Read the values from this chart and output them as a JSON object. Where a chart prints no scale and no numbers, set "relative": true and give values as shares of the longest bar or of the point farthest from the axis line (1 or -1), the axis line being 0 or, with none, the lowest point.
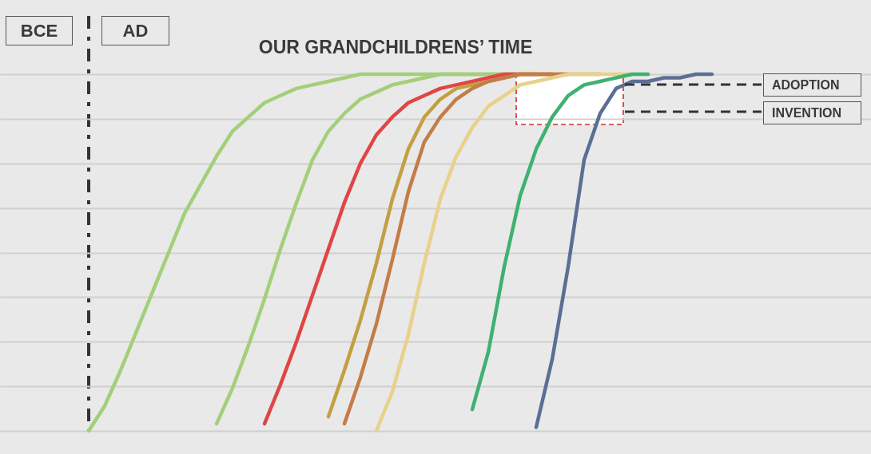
{
  "chart_data": {
    "type": "line",
    "title": "OUR GRANDCHILDRENS’ TIME",
    "annotations": [
      "BCE",
      "AD",
      "ADOPTION",
      "INVENTION"
    ],
    "relative": true,
    "grid": true,
    "categories": [
      null,
      null,
      null,
      null,
      null,
      null,
      null,
      null,
      null,
      null,
      null,
      null,
      null,
      null,
      null,
      null,
      null,
      null,
      null,
      null,
      null,
      null,
      null,
      null,
      null,
      null,
      null,
      null,
      null,
      null,
      null,
      null,
      null,
      null,
      null,
      null,
      null,
      null,
      null,
      null
    ],
    "series": [
      {
        "color": "#a3cf7a",
        "values": [
          0,
          0.07,
          0.17,
          0.28,
          0.39,
          0.5,
          0.61,
          0.69,
          0.77,
          0.84,
          0.88,
          0.92,
          0.94,
          0.96,
          0.97,
          0.98,
          0.99,
          1,
          1,
          1,
          1,
          1,
          1,
          1,
          1,
          1,
          1,
          1,
          null,
          null,
          null,
          null,
          null,
          null,
          null,
          null,
          null,
          null,
          null,
          null
        ]
      },
      {
        "color": "#a3cf7a",
        "values": [
          null,
          null,
          null,
          null,
          null,
          null,
          null,
          null,
          0.02,
          0.12,
          0.24,
          0.37,
          0.51,
          0.64,
          0.76,
          0.84,
          0.89,
          0.93,
          0.95,
          0.97,
          0.98,
          0.99,
          1,
          1,
          1,
          1,
          1,
          1,
          1,
          null,
          null,
          null,
          null,
          null,
          null,
          null,
          null,
          null,
          null,
          null
        ]
      },
      {
        "color": "#e04545",
        "values": [
          null,
          null,
          null,
          null,
          null,
          null,
          null,
          null,
          null,
          null,
          null,
          0.02,
          0.13,
          0.25,
          0.38,
          0.51,
          0.64,
          0.75,
          0.83,
          0.88,
          0.92,
          0.94,
          0.96,
          0.97,
          0.98,
          0.99,
          1,
          1,
          1,
          1,
          null,
          null,
          null,
          null,
          null,
          null,
          null,
          null,
          null,
          null
        ]
      },
      {
        "color": "#c2a042",
        "values": [
          null,
          null,
          null,
          null,
          null,
          null,
          null,
          null,
          null,
          null,
          null,
          null,
          null,
          null,
          null,
          0.04,
          0.17,
          0.31,
          0.47,
          0.65,
          0.79,
          0.88,
          0.93,
          0.96,
          0.97,
          0.98,
          0.99,
          1,
          1,
          1,
          1,
          1,
          1,
          null,
          null,
          null,
          null,
          null,
          null,
          null
        ]
      },
      {
        "color": "#c47c48",
        "values": [
          null,
          null,
          null,
          null,
          null,
          null,
          null,
          null,
          null,
          null,
          null,
          null,
          null,
          null,
          null,
          null,
          0.02,
          0.15,
          0.3,
          0.48,
          0.67,
          0.81,
          0.88,
          0.93,
          0.96,
          0.98,
          0.99,
          1,
          1,
          1,
          1,
          null,
          null,
          null,
          null,
          null,
          null,
          null,
          null,
          null
        ]
      },
      {
        "color": "#e8d18a",
        "values": [
          null,
          null,
          null,
          null,
          null,
          null,
          null,
          null,
          null,
          null,
          null,
          null,
          null,
          null,
          null,
          null,
          null,
          null,
          0,
          0.11,
          0.27,
          0.47,
          0.65,
          0.77,
          0.85,
          0.91,
          0.94,
          0.97,
          0.98,
          0.99,
          1,
          1,
          1,
          1,
          1,
          null,
          null,
          null,
          null,
          null
        ]
      },
      {
        "color": "#3fb172",
        "values": [
          null,
          null,
          null,
          null,
          null,
          null,
          null,
          null,
          null,
          null,
          null,
          null,
          null,
          null,
          null,
          null,
          null,
          null,
          null,
          null,
          null,
          null,
          null,
          null,
          0.06,
          0.22,
          0.46,
          0.66,
          0.79,
          0.88,
          0.94,
          0.97,
          0.98,
          0.99,
          1,
          1,
          null,
          null,
          null,
          null
        ]
      },
      {
        "color": "#5b6f94",
        "values": [
          null,
          null,
          null,
          null,
          null,
          null,
          null,
          null,
          null,
          null,
          null,
          null,
          null,
          null,
          null,
          null,
          null,
          null,
          null,
          null,
          null,
          null,
          null,
          null,
          null,
          null,
          null,
          null,
          0.01,
          0.2,
          0.46,
          0.76,
          0.89,
          0.96,
          0.98,
          0.98,
          0.99,
          0.99,
          1,
          1
        ]
      }
    ]
  }
}
